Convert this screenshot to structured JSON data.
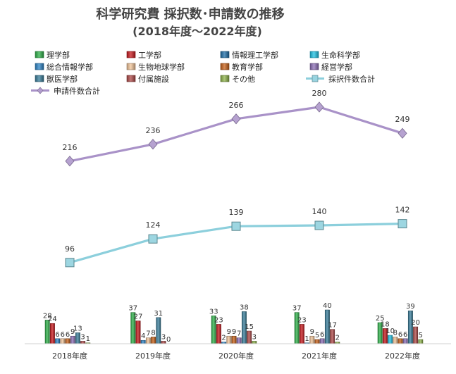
{
  "chart_data": {
    "type": "bar",
    "title_line1": "科学研究費 採択数･申請数の推移",
    "title_line2": "(2018年度～2022年度)",
    "categories": [
      "2018年度",
      "2019年度",
      "2020年度",
      "2021年度",
      "2022年度"
    ],
    "ylim": [
      0,
      300
    ],
    "grid": false,
    "legend_position": "top",
    "series": [
      {
        "name": "理学部",
        "type": "bar",
        "color": "#2fb24a",
        "values": [
          28,
          37,
          33,
          37,
          25
        ]
      },
      {
        "name": "工学部",
        "type": "bar",
        "color": "#c9191e",
        "values": [
          24,
          27,
          23,
          23,
          18
        ]
      },
      {
        "name": "情報理工学部",
        "type": "bar",
        "color": "#1f6fa8",
        "values": [
          null,
          null,
          null,
          null,
          null
        ]
      },
      {
        "name": "生命科学部",
        "type": "bar",
        "color": "#1ec3e6",
        "values": [
          null,
          null,
          null,
          null,
          10
        ]
      },
      {
        "name": "総合情報学部",
        "type": "bar",
        "color": "#2f86c8",
        "values": [
          6,
          4,
          2,
          1,
          null
        ]
      },
      {
        "name": "生物地球学部",
        "type": "bar",
        "color": "#f3c59a",
        "values": [
          6,
          7,
          9,
          9,
          8
        ]
      },
      {
        "name": "教育学部",
        "type": "bar",
        "color": "#c8621a",
        "values": [
          6,
          8,
          9,
          5,
          6
        ]
      },
      {
        "name": "経営学部",
        "type": "bar",
        "color": "#8d70b8",
        "values": [
          9,
          null,
          7,
          6,
          6
        ]
      },
      {
        "name": "獣医学部",
        "type": "bar",
        "color": "#3a7f9c",
        "values": [
          13,
          31,
          38,
          40,
          39
        ]
      },
      {
        "name": "付属施設",
        "type": "bar",
        "color": "#b04a48",
        "values": [
          3,
          3,
          15,
          17,
          20
        ]
      },
      {
        "name": "その他",
        "type": "bar",
        "color": "#8db34a",
        "values": [
          1,
          0,
          3,
          2,
          5
        ]
      },
      {
        "name": "採択件数合計",
        "type": "line",
        "color": "#8ccfdc",
        "values": [
          96,
          124,
          139,
          140,
          142
        ]
      },
      {
        "name": "申請件数合計",
        "type": "line",
        "color": "#a992c8",
        "values": [
          216,
          236,
          266,
          280,
          249
        ]
      }
    ]
  }
}
